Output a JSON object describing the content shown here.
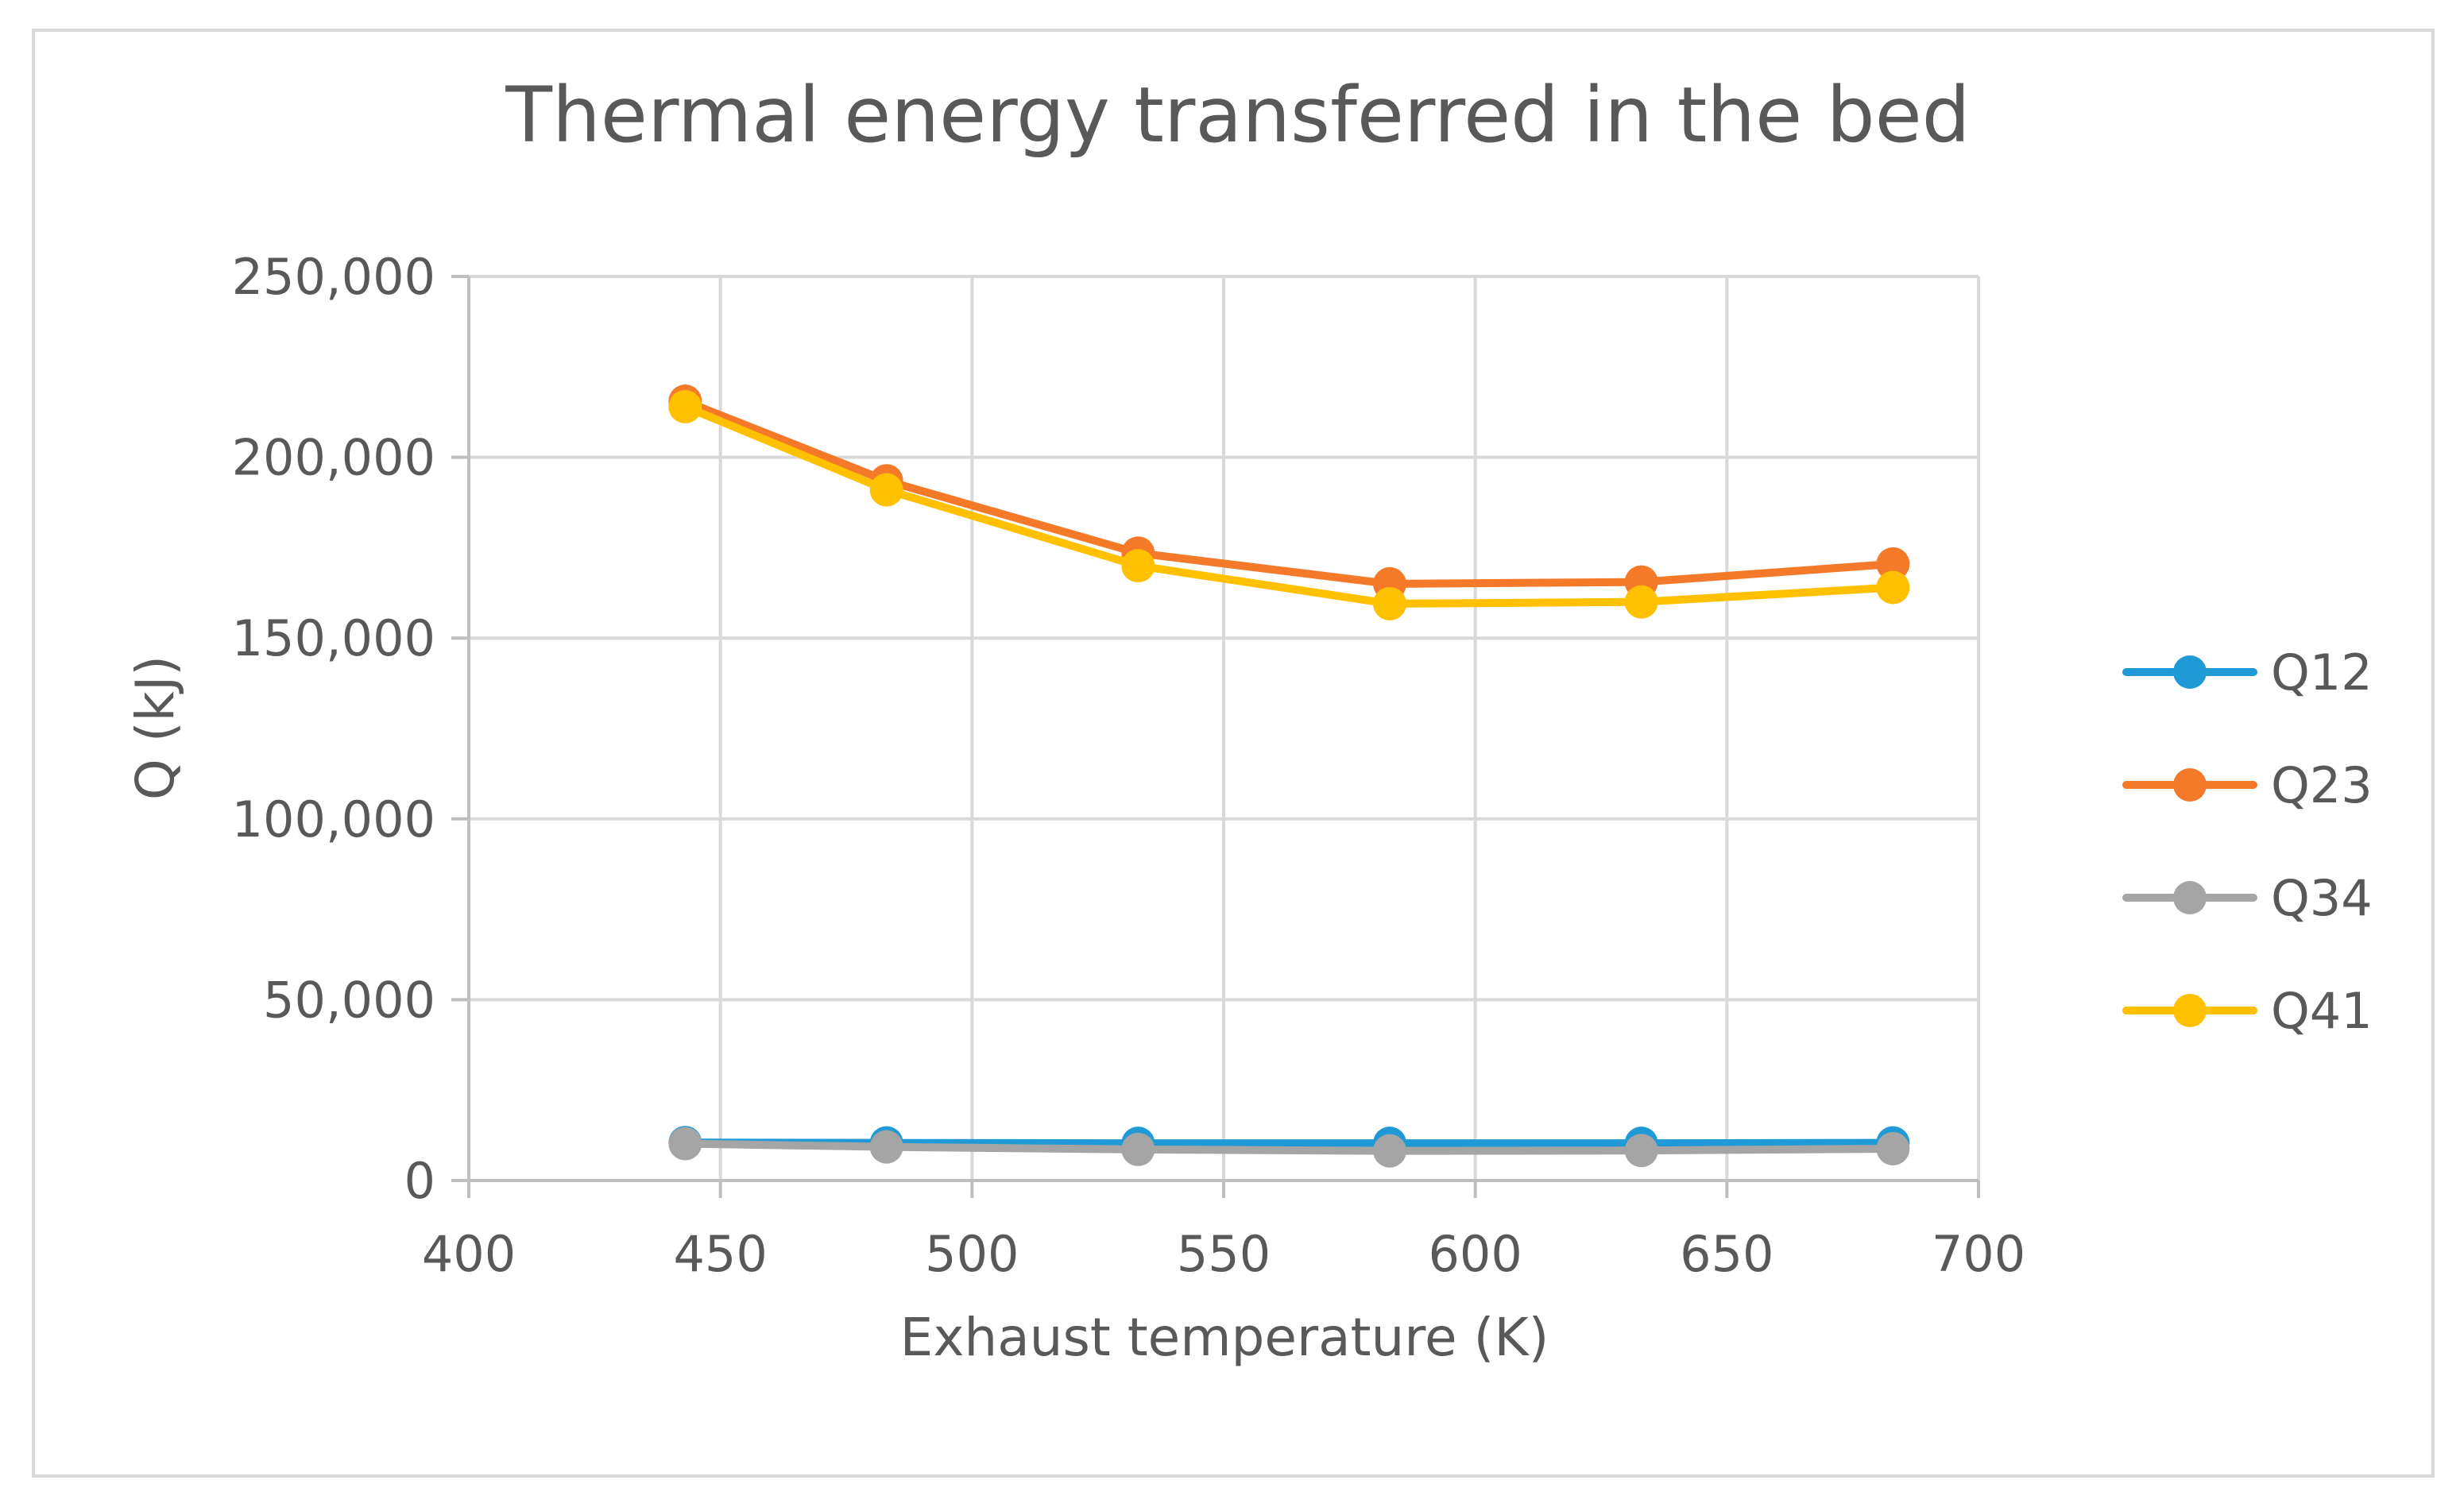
{
  "chart_data": {
    "type": "line",
    "title": "Thermal energy transferred in the bed",
    "xlabel": "Exhaust temperature (K)",
    "ylabel": "Q (kJ)",
    "xlim": [
      400,
      700
    ],
    "ylim": [
      0,
      250000
    ],
    "x_ticks": [
      400,
      450,
      500,
      550,
      600,
      650,
      700
    ],
    "x_tick_labels": [
      "400",
      "450",
      "500",
      "550",
      "600",
      "650",
      "700"
    ],
    "y_ticks": [
      0,
      50000,
      100000,
      150000,
      200000,
      250000
    ],
    "y_tick_labels": [
      "0",
      "50,000",
      "100,000",
      "150,000",
      "200,000",
      "250,000"
    ],
    "grid": true,
    "legend_position": "right",
    "x": [
      443,
      483,
      533,
      583,
      633,
      683
    ],
    "series": [
      {
        "name": "Q12",
        "color": "#1F9AD6",
        "values": [
          10500,
          10400,
          10300,
          10300,
          10300,
          10400
        ]
      },
      {
        "name": "Q23",
        "color": "#F47A2A",
        "values": [
          215500,
          193500,
          173500,
          165000,
          165500,
          170500
        ]
      },
      {
        "name": "Q34",
        "color": "#A5A5A5",
        "values": [
          10200,
          9300,
          8600,
          8200,
          8300,
          8800
        ]
      },
      {
        "name": "Q41",
        "color": "#FFC000",
        "values": [
          214000,
          191000,
          170000,
          159500,
          160000,
          164000
        ]
      }
    ]
  }
}
